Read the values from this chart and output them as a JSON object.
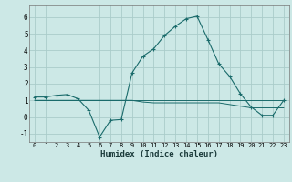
{
  "xlabel": "Humidex (Indice chaleur)",
  "ylabel": "",
  "background_color": "#cce8e6",
  "grid_color": "#aaccca",
  "line_color": "#1a6b6b",
  "xlim": [
    -0.5,
    23.5
  ],
  "ylim": [
    -1.5,
    6.7
  ],
  "yticks": [
    -1,
    0,
    1,
    2,
    3,
    4,
    5,
    6
  ],
  "xticks": [
    0,
    1,
    2,
    3,
    4,
    5,
    6,
    7,
    8,
    9,
    10,
    11,
    12,
    13,
    14,
    15,
    16,
    17,
    18,
    19,
    20,
    21,
    22,
    23
  ],
  "x": [
    0,
    1,
    2,
    3,
    4,
    5,
    6,
    7,
    8,
    9,
    10,
    11,
    12,
    13,
    14,
    15,
    16,
    17,
    18,
    19,
    20,
    21,
    22,
    23
  ],
  "y_main": [
    1.2,
    1.2,
    1.3,
    1.35,
    1.1,
    0.4,
    -1.2,
    -0.2,
    -0.15,
    2.65,
    3.65,
    4.1,
    4.9,
    5.45,
    5.9,
    6.05,
    4.65,
    3.2,
    2.45,
    1.4,
    0.6,
    0.1,
    0.1,
    1.0
  ],
  "y_flat1": [
    1.0,
    1.0,
    1.0,
    1.0,
    1.0,
    1.0,
    1.0,
    1.0,
    1.0,
    1.0,
    1.0,
    1.0,
    1.0,
    1.0,
    1.0,
    1.0,
    1.0,
    1.0,
    1.0,
    1.0,
    1.0,
    1.0,
    1.0,
    1.0
  ],
  "y_flat2": [
    1.0,
    1.0,
    1.0,
    1.0,
    1.0,
    1.0,
    1.0,
    1.0,
    1.0,
    1.0,
    0.9,
    0.85,
    0.85,
    0.85,
    0.85,
    0.85,
    0.85,
    0.85,
    0.75,
    0.65,
    0.55,
    0.55,
    0.55,
    0.55
  ]
}
